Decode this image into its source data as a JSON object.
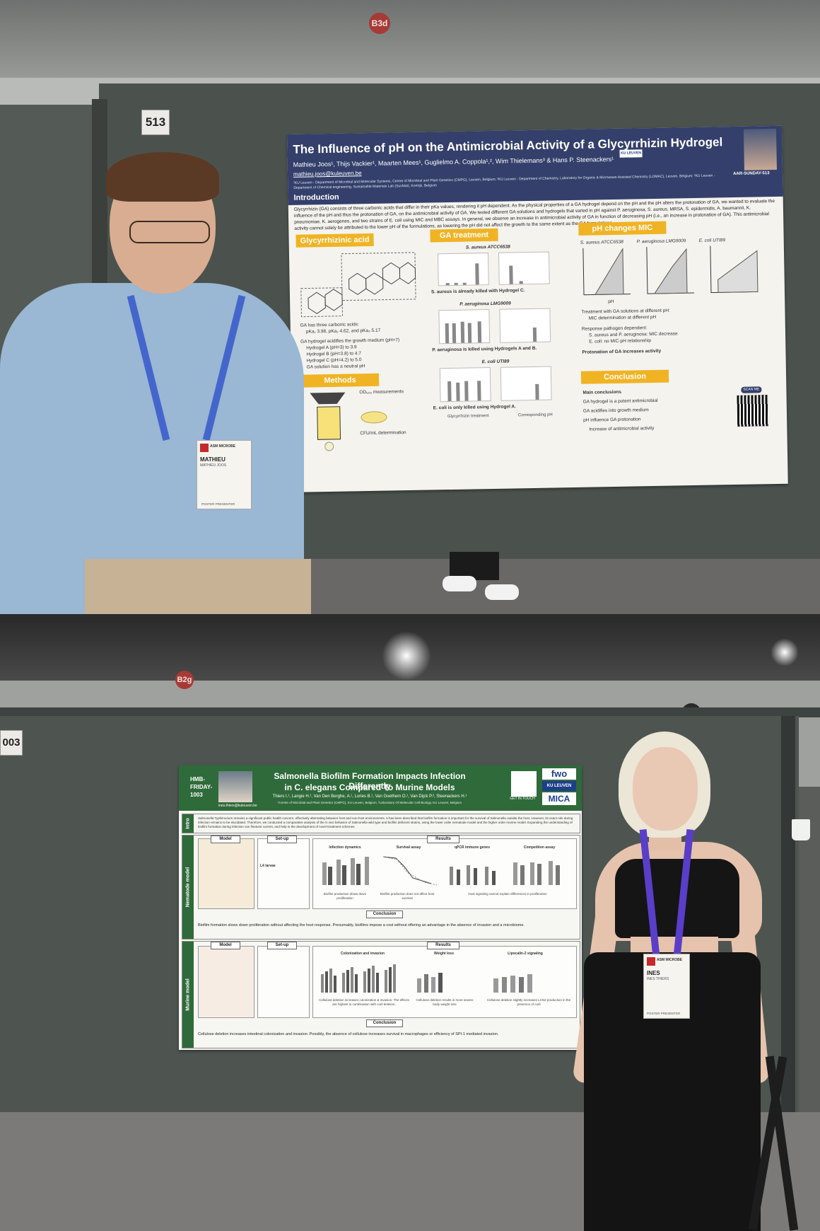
{
  "photo1": {
    "booth_marker": "B3d",
    "board_number": "513",
    "poster": {
      "title": "The Influence of pH on the Antimicrobial Activity of a Glycyrrhizin Hydrogel",
      "authors": "Mathieu Joos¹, Thijs Vackier¹, Maarten Mees¹, Guglielmo A. Coppola¹,², Wim Thielemans³ & Hans P. Steenackers¹",
      "email": "mathieu.joos@kuleuven.be",
      "affiliations": "¹KU Leuven - Department of Microbial and Molecular Systems, Centre of Microbial and Plant Genetics (CMPG), Leuven, Belgium; ²KU Leuven - Department of Chemistry, Laboratory for Organic & Microwave-Assisted Chemistry (LOMAC), Leuven, Belgium; ³KU Leuven - Department of Chemical engineering, Sustainable Materials Lab (SusMat), Kortrijk, Belgium",
      "logo": "KU LEUVEN",
      "code": "AAR-SUNDAY-513",
      "intro_heading": "Introduction",
      "intro_text": "Glycyrrhizin (GA) consists of three carbonic acids that differ in their pKa values, rendering it pH dependent. As the physical properties of a GA hydrogel depend on the pH and the pH alters the protonation of GA, we wanted to evaluate the influence of the pH and thus the protonation of GA, on the antimicrobial activity of GA. We tested different GA solutions and hydrogels that varied in pH against P. aeruginosa, S. aureus, MRSA, S. epidermidis, A. baumannii, K. pneumoniae, K. aerogenes, and two strains of E. coli using MIC and MBC assays. In general, we observe an increase in antimicrobial activity of GA in function of decreasing pH (i.e., an increase in protonation of GA). This antimicrobial activity cannot solely be attributed to the lower pH of the formulations, as lowering the pH did not affect the growth to the same extent as the GA formulations.",
      "sections": {
        "glycyrrhizinic": "Glycyrrhizinic acid",
        "treatment": "GA treatment",
        "mic": "pH changes MIC",
        "methods": "Methods",
        "conclusion": "Conclusion"
      },
      "ga_text": {
        "acids_line": "GA has three carbonic acids:",
        "pka_line": "pKa₁ 3.98, pKa₂ 4.62, and pKa₃ 5.17",
        "acidifies": "GA hydrogel acidifies the growth medium (pH=7)",
        "hydrogel_a": "Hydrogel A (pH=3) to 3.9",
        "hydrogel_b": "Hydrogel B (pH=3.8) to 4.7",
        "hydrogel_c": "Hydrogel C (pH=4.2) to 5.0",
        "neutral": "GA solution has a neutral pH"
      },
      "methods": {
        "od_measure": "OD₆₀₀ measurements",
        "cfu": "CFU/mL determination"
      },
      "treatment": {
        "s_aureus_title": "S. aureus ATCC6538",
        "s_aureus_caption": "S. aureus is already killed with Hydrogel C.",
        "p_aeruginosa_title": "P. aeruginosa LMG9009",
        "p_aeruginosa_caption": "P. aeruginosa is killed using Hydrogels A and B.",
        "e_coli_title": "E. coli UTI89",
        "e_coli_caption": "E. coli is only killed using Hydrogel A.",
        "legend_1": "Glycyrrhizin treatment",
        "legend_2": "Corresponding pH"
      },
      "mic": {
        "panel_1": "S. aureus ATCC6538",
        "panel_2": "P. aeruginosa LMG9009",
        "panel_3": "E. coli UTI89",
        "x_label": "pH",
        "treatment_line": "Treatment with GA solutions at different pH:",
        "bullet_1": "MIC determination at different pH",
        "response_line": "Response pathogen dependent:",
        "bullet_2": "S. aureus and P. aeruginosa: MIC decrease",
        "bullet_3": "E. coli: no MIC-pH relationship",
        "protonation": "Protonation of GA increases activity"
      },
      "conclusion": {
        "heading": "Main conclusions",
        "c1": "GA hydrogel is a potent antimicrobial",
        "c2": "GA acidifies into growth medium",
        "c3": "pH influence GA protonation",
        "c4": "Increase of antimicrobial activity",
        "scan": "SCAN ME"
      }
    },
    "badge": {
      "org": "ASM MICROBE",
      "name": "MATHIEU",
      "fullname": "MATHIEU JOOS",
      "role": "POSTER PRESENTER"
    }
  },
  "photo2": {
    "booth_marker": "B2g",
    "board_number": "003",
    "poster": {
      "code_line1": "HMB-",
      "code_line2": "FRIDAY-",
      "code_line3": "1003",
      "email": "ines.thiers@kuleuven.be",
      "title_line1": "Salmonella Biofilm Formation Impacts Infection Differently",
      "title_line2": "in C. elegans Compared To Murine Models",
      "authors": "Thiers I.¹, Langie H.¹, Van Den Berghe, A.¹, Lories B.¹, Van Goethem O.¹, Van Dijck P.², Steenackers H.¹",
      "affiliations": "¹Centre of Microbial and Plant Genetics (CMPG), KU Leuven, Belgium, ²Laboratory Of Molecular Cell Biology, KU Leuven, Belgium",
      "qr_label": "GET IN TOUCH",
      "logo_fwo": "fwo",
      "logo_ku": "KU LEUVEN",
      "logo_mica": "MICA",
      "intro_label": "Intro",
      "intro_text": "Salmonella Typhimurium remains a significant public health concern, effectively alternating between host and non-host environments. It has been described that biofilm formation is important for the survival of Salmonella outside the host. However, its exact role during infection remains to be elucidated. Therefore, we conducted a comparative analysis of the in vivo behavior of Salmonella wild type and biofilm deficient strains, using the lower order nematode model and the higher order murine model. Expanding the understanding of biofilm formation during infection can finetune current, and help in the development of novel treatment schemes.",
      "nematode_label": "Nematode model",
      "murine_label": "Murine model",
      "model": "Model",
      "setup": "Set-up",
      "results": "Results",
      "conclusion": "Conclusion",
      "larvae": "L4 larvae",
      "nem_panels": [
        "Infection dynamics",
        "Survival assay",
        "qPCR immune genes",
        "Competition assay"
      ],
      "nem_captions": [
        "Biofilm production slows down proliferation",
        "Biofilm production does not affect host survival",
        "Host signaling cannot explain differences in proliferation"
      ],
      "nem_conclusion": "Biofilm formation slows down proliferation without affecting the host response. Presumably, biofilms impose a cost without offering an advantage in the absence of invasion and a microbiome.",
      "mur_panels": [
        "Colonization and invasion",
        "Weight loss",
        "Lipocalin-2 signaling"
      ],
      "mur_captions": [
        "Cellulose deletion increases colonization & invasion. The effects are highest in combination with curli deletion.",
        "Cellulose deletion results in more severe body weight loss",
        "Cellulose deletion slightly increases LCN2 production in the presence of curli"
      ],
      "mur_conclusion": "Cellulose deletion increases intestinal colonization and invasion. Possibly, the absence of cellulose increases survival in macrophages or efficiency of SPI-1 mediated invasion."
    },
    "badge": {
      "org": "ASM MICROBE",
      "name": "INES",
      "fullname": "INES THIERS",
      "role": "POSTER PRESENTER"
    }
  },
  "colors": {
    "poster1_header": "#34406b",
    "poster1_accent": "#f0b323",
    "poster2_header": "#2f6a3a",
    "board": "#4b524e"
  }
}
